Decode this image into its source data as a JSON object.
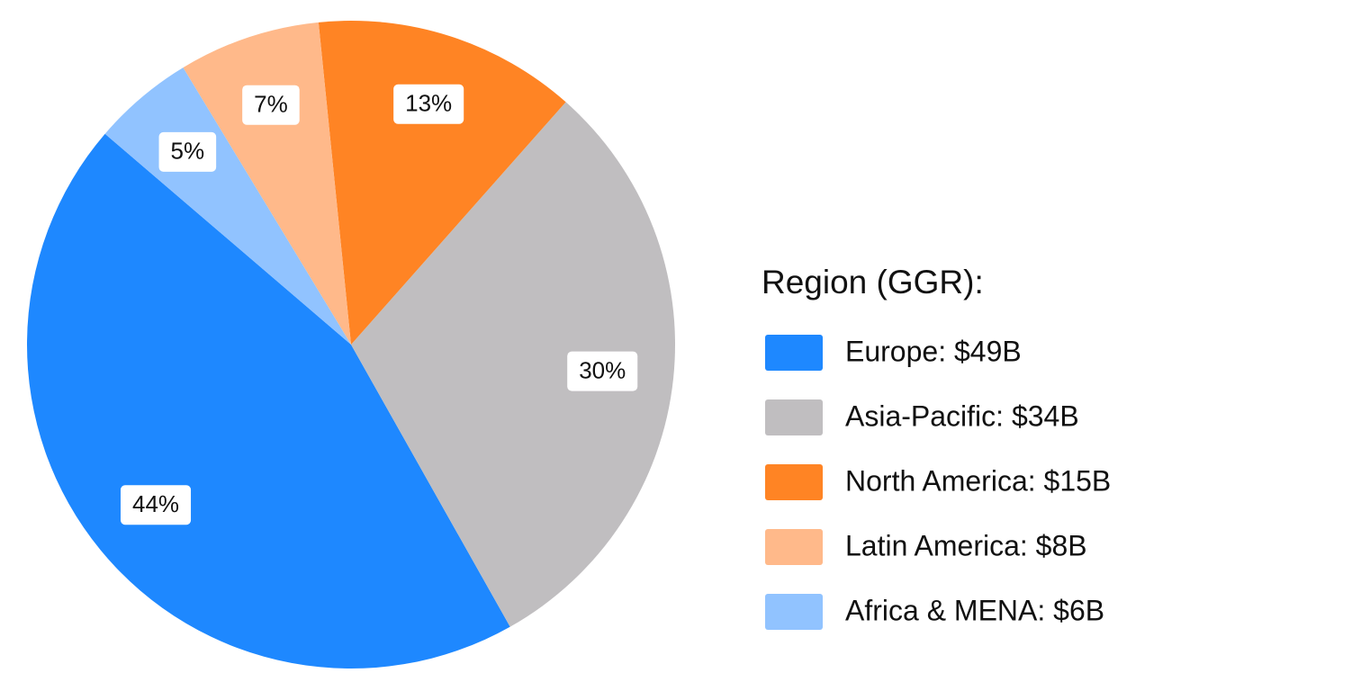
{
  "chart_data": {
    "type": "pie",
    "legend_title": "Region (GGR):",
    "categories": [
      "Europe: $49B",
      "Asia-Pacific: $34B",
      "North America: $15B",
      "Latin America: $8B",
      "Africa & MENA: $6B"
    ],
    "values": [
      44,
      30,
      13,
      7,
      5
    ],
    "value_labels": [
      "44%",
      "30%",
      "13%",
      "7%",
      "5%"
    ],
    "colors": [
      "#1e88ff",
      "#c0bec0",
      "#ff8424",
      "#ffb98a",
      "#91c3ff"
    ],
    "legend": "right"
  }
}
